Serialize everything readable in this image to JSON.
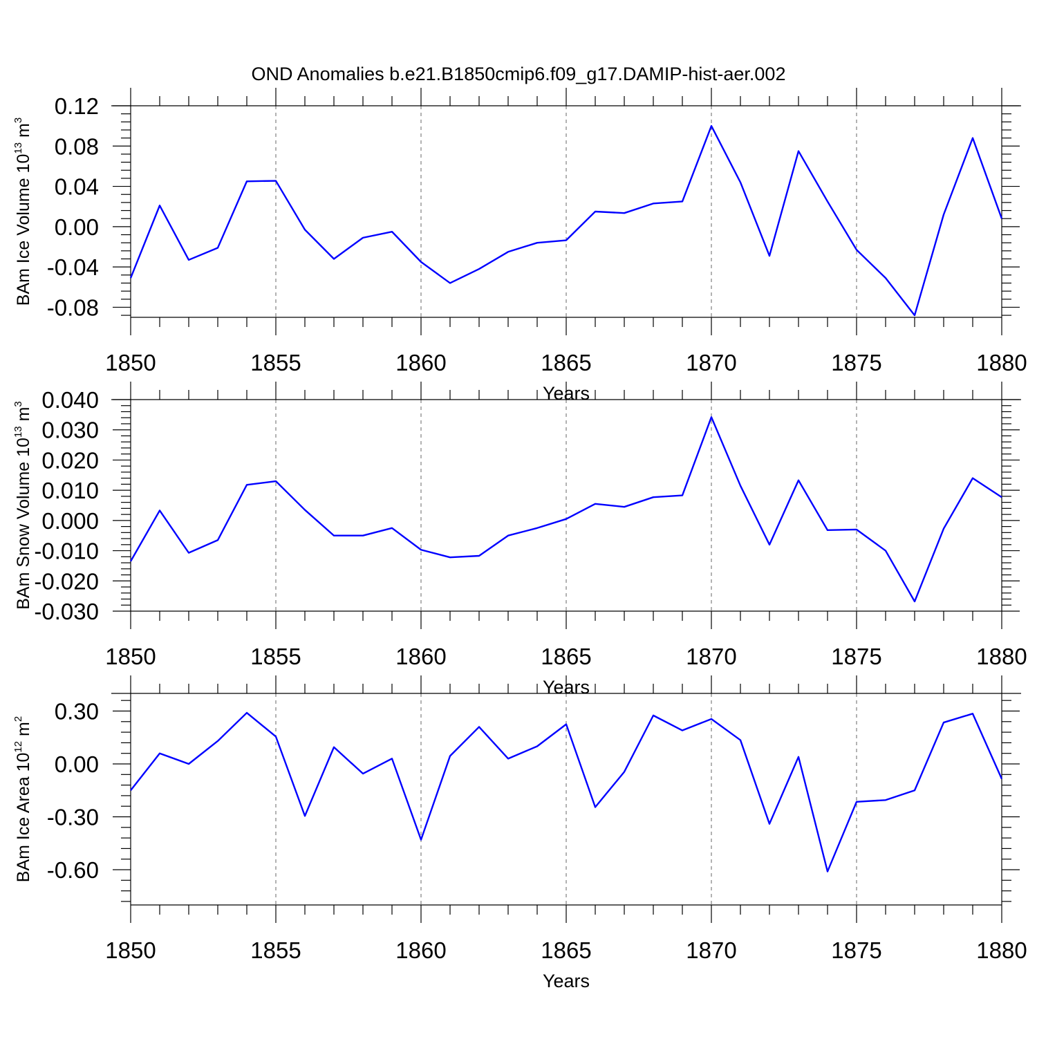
{
  "title": "OND Anomalies b.e21.B1850cmip6.f09_g17.DAMIP-hist-aer.002",
  "colors": {
    "series": "#0000ff",
    "axis": "#000000"
  },
  "chart_data": [
    {
      "type": "line",
      "xlabel": "Years",
      "ylabel": {
        "text": "BAm Ice Volume 10",
        "sup": "13",
        "unit": " m",
        "unit_sup": "3"
      },
      "xlim": [
        1850,
        1880
      ],
      "ylim": [
        -0.09,
        0.12
      ],
      "reference_y": 0.12,
      "grid": "vertical dashed",
      "x_ticks": [
        1850,
        1855,
        1860,
        1865,
        1870,
        1875,
        1880
      ],
      "x_tick_labels": [
        "1850",
        "1855",
        "1860",
        "1865",
        "1870",
        "1875",
        "1880"
      ],
      "y_ticks": [
        0.12,
        0.08,
        0.04,
        0.0,
        -0.04,
        -0.08
      ],
      "y_tick_labels": [
        "0.12",
        "0.08",
        "0.04",
        "0.00",
        "-0.04",
        "-0.08"
      ],
      "x": [
        1850,
        1851,
        1852,
        1853,
        1854,
        1855,
        1856,
        1857,
        1858,
        1859,
        1860,
        1861,
        1862,
        1863,
        1864,
        1865,
        1866,
        1867,
        1868,
        1869,
        1870,
        1871,
        1872,
        1873,
        1874,
        1875,
        1876,
        1877,
        1878,
        1879,
        1880
      ],
      "series": [
        {
          "values": [
            -0.051,
            0.021,
            -0.033,
            -0.021,
            0.045,
            0.0455,
            -0.003,
            -0.032,
            -0.011,
            -0.005,
            -0.035,
            -0.056,
            -0.042,
            -0.025,
            -0.016,
            -0.0135,
            0.015,
            0.0135,
            0.023,
            0.025,
            0.1,
            0.044,
            -0.029,
            0.075,
            0.025,
            -0.023,
            -0.051,
            -0.088,
            0.012,
            0.088,
            0.008
          ]
        }
      ]
    },
    {
      "type": "line",
      "xlabel": "Years",
      "ylabel": {
        "text": "BAm Snow Volume 10",
        "sup": "13",
        "unit": " m",
        "unit_sup": "3"
      },
      "xlim": [
        1850,
        1880
      ],
      "ylim": [
        -0.03,
        0.04
      ],
      "reference_y": 0.04,
      "grid": "vertical dashed",
      "x_ticks": [
        1850,
        1855,
        1860,
        1865,
        1870,
        1875,
        1880
      ],
      "x_tick_labels": [
        "1850",
        "1855",
        "1860",
        "1865",
        "1870",
        "1875",
        "1880"
      ],
      "y_ticks": [
        0.04,
        0.03,
        0.02,
        0.01,
        0.0,
        -0.01,
        -0.02,
        -0.03
      ],
      "y_tick_labels": [
        "0.040",
        "0.030",
        "0.020",
        "0.010",
        "0.000",
        "-0.010",
        "-0.020",
        "-0.030"
      ],
      "x": [
        1850,
        1851,
        1852,
        1853,
        1854,
        1855,
        1856,
        1857,
        1858,
        1859,
        1860,
        1861,
        1862,
        1863,
        1864,
        1865,
        1866,
        1867,
        1868,
        1869,
        1870,
        1871,
        1872,
        1873,
        1874,
        1875,
        1876,
        1877,
        1878,
        1879,
        1880
      ],
      "series": [
        {
          "values": [
            -0.0135,
            0.0033,
            -0.0107,
            -0.0065,
            0.0118,
            0.013,
            0.0035,
            -0.005,
            -0.005,
            -0.0025,
            -0.0097,
            -0.0122,
            -0.0117,
            -0.005,
            -0.0025,
            0.0005,
            0.0055,
            0.0045,
            0.0077,
            0.0083,
            0.0342,
            0.0115,
            -0.008,
            0.0133,
            -0.0032,
            -0.003,
            -0.01,
            -0.0268,
            -0.0027,
            0.014,
            0.0077
          ]
        }
      ]
    },
    {
      "type": "line",
      "xlabel": "Years",
      "ylabel": {
        "text": "BAm Ice Area 10",
        "sup": "12",
        "unit": " m",
        "unit_sup": "2"
      },
      "xlim": [
        1850,
        1880
      ],
      "ylim": [
        -0.8,
        0.4
      ],
      "reference_y": 0.4,
      "grid": "vertical dashed",
      "x_ticks": [
        1850,
        1855,
        1860,
        1865,
        1870,
        1875,
        1880
      ],
      "x_tick_labels": [
        "1850",
        "1855",
        "1860",
        "1865",
        "1870",
        "1875",
        "1880"
      ],
      "y_ticks": [
        0.3,
        0.0,
        -0.3,
        -0.6
      ],
      "y_tick_labels": [
        "0.30",
        "0.00",
        "-0.30",
        "-0.60"
      ],
      "x": [
        1850,
        1851,
        1852,
        1853,
        1854,
        1855,
        1856,
        1857,
        1858,
        1859,
        1860,
        1861,
        1862,
        1863,
        1864,
        1865,
        1866,
        1867,
        1868,
        1869,
        1870,
        1871,
        1872,
        1873,
        1874,
        1875,
        1876,
        1877,
        1878,
        1879,
        1880
      ],
      "series": [
        {
          "values": [
            -0.15,
            0.06,
            0.0,
            0.13,
            0.29,
            0.155,
            -0.295,
            0.095,
            -0.055,
            0.03,
            -0.43,
            0.045,
            0.21,
            0.03,
            0.1,
            0.225,
            -0.245,
            -0.045,
            0.275,
            0.19,
            0.255,
            0.135,
            -0.34,
            0.04,
            -0.61,
            -0.215,
            -0.205,
            -0.15,
            0.235,
            0.285,
            -0.085
          ]
        }
      ]
    }
  ]
}
